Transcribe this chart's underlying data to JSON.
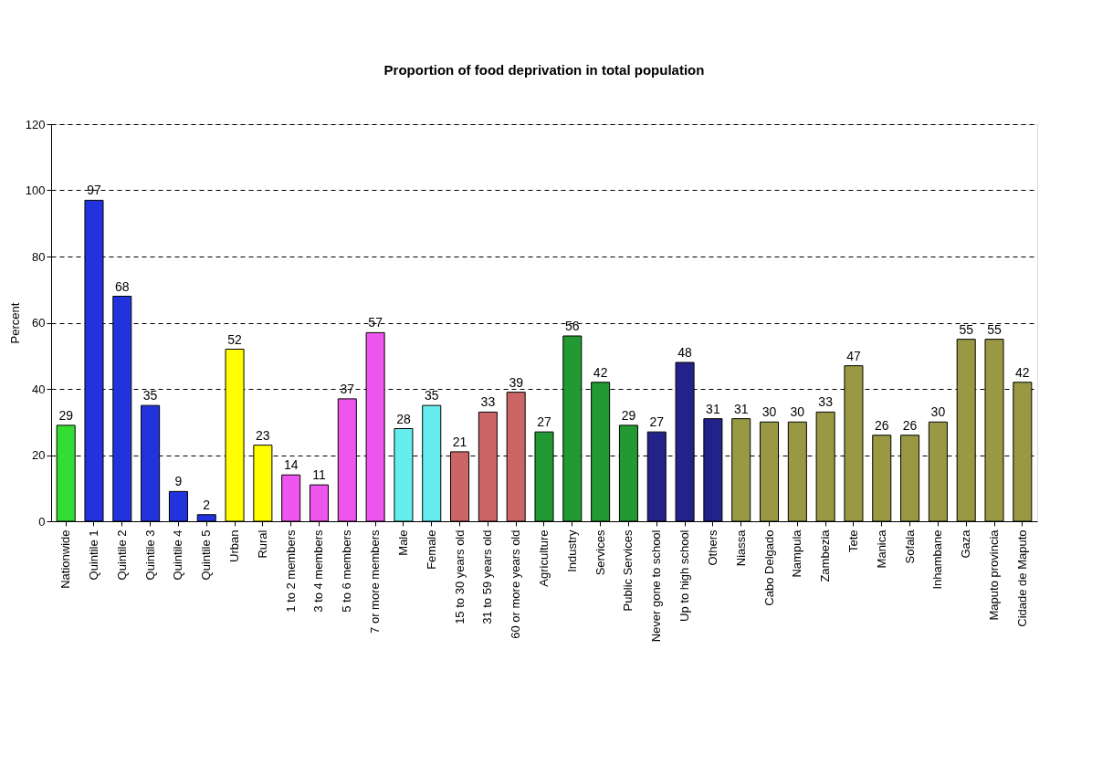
{
  "chart_data": {
    "type": "bar",
    "title": "Proportion of food deprivation in total population",
    "ylabel": "Percent",
    "categories": [
      "Nationwide",
      "Quintile 1",
      "Quintile 2",
      "Quintile 3",
      "Quintile 4",
      "Quintile 5",
      "Urban",
      "Rural",
      "1 to 2 members",
      "3 to 4 members",
      "5 to 6 members",
      "7 or more members",
      "Male",
      "Female",
      "15 to 30 years old",
      "31 to 59 years old",
      "60 or more years old",
      "Agriculture",
      "Industry",
      "Services",
      "Public Services",
      "Never gone to school",
      "Up to high school",
      "Others",
      "Niassa",
      "Cabo Delgado",
      "Nampula",
      "Zambezia",
      "Tete",
      "Manica",
      "Sofala",
      "Inhambane",
      "Gaza",
      "Maputo provincia",
      "Cidade de Maputo"
    ],
    "values": [
      29,
      97,
      68,
      35,
      9,
      2,
      52,
      23,
      14,
      11,
      37,
      57,
      28,
      35,
      21,
      33,
      39,
      27,
      56,
      42,
      29,
      27,
      48,
      31,
      31,
      30,
      30,
      33,
      47,
      26,
      26,
      30,
      55,
      55,
      42
    ],
    "colors": [
      "#33dd33",
      "#2233dd",
      "#2233dd",
      "#2233dd",
      "#2233dd",
      "#2233dd",
      "#ffff00",
      "#ffff00",
      "#ee55ee",
      "#ee55ee",
      "#ee55ee",
      "#ee55ee",
      "#66eeee",
      "#66eeee",
      "#cc6666",
      "#cc6666",
      "#cc6666",
      "#229933",
      "#229933",
      "#229933",
      "#229933",
      "#222288",
      "#222288",
      "#222288",
      "#999944",
      "#999944",
      "#999944",
      "#999944",
      "#999944",
      "#999944",
      "#999944",
      "#999944",
      "#999944",
      "#999944",
      "#999944"
    ],
    "ylim": [
      0,
      120
    ],
    "yticks": [
      0,
      20,
      40,
      60,
      80,
      100,
      120
    ],
    "grid": "y",
    "data_labels": true
  }
}
